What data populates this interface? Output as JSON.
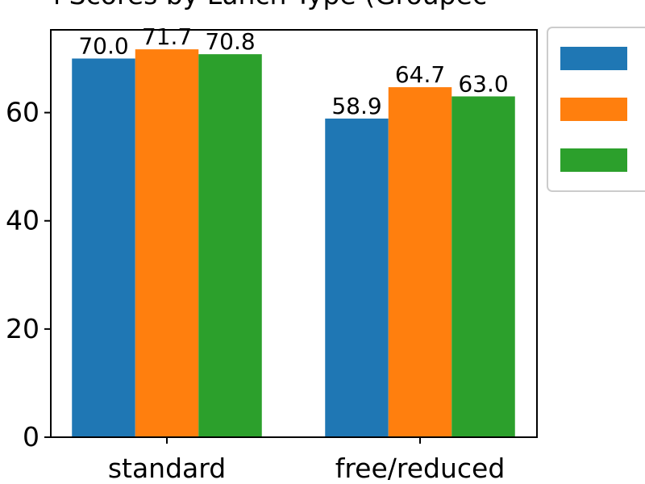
{
  "chart_data": {
    "type": "bar",
    "title": "l Scores by Lunch Type (Groupec",
    "xlabel": "",
    "ylabel": "",
    "categories": [
      "standard",
      "free/reduced"
    ],
    "series": [
      {
        "values": [
          70.0,
          58.9
        ],
        "color": "#1f77b4"
      },
      {
        "values": [
          71.7,
          64.7
        ],
        "color": "#ff7f0e"
      },
      {
        "values": [
          70.8,
          63.0
        ],
        "color": "#2ca02c"
      }
    ],
    "data_labels": [
      [
        "70.0",
        "58.9"
      ],
      [
        "71.7",
        "64.7"
      ],
      [
        "70.8",
        "63.0"
      ]
    ],
    "yticks": [
      0,
      20,
      40,
      60
    ],
    "ytick_labels": [
      "0",
      "20",
      "40",
      "60"
    ],
    "ylim": [
      0,
      75.3
    ],
    "grid": false,
    "legend": {
      "placement": "outside-right",
      "entries": [
        "",
        "",
        ""
      ]
    }
  }
}
